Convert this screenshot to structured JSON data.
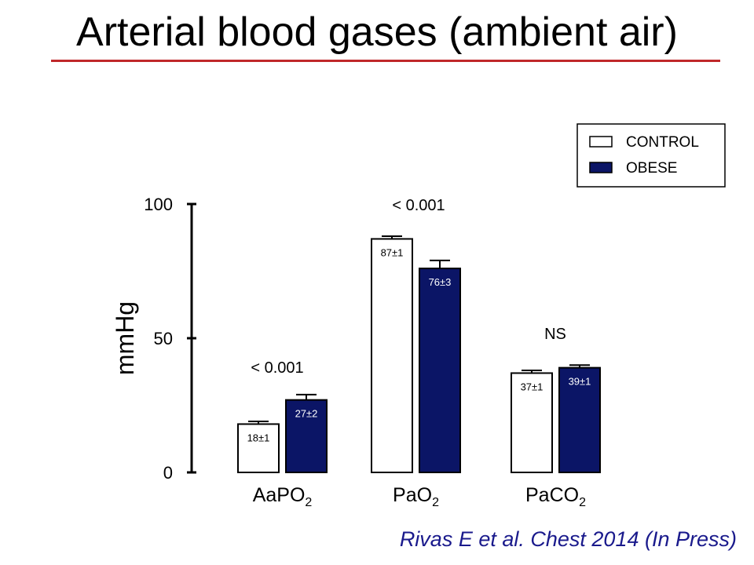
{
  "title": "Arterial blood gases (ambient air)",
  "citation": "Rivas E et al. Chest 2014 (In Press)",
  "colors": {
    "control": "#ffffff",
    "obese": "#0b1566",
    "title_rule": "#c0282a",
    "citation": "#1a1a8c"
  },
  "chart_data": {
    "type": "bar",
    "ylabel": "mmHg",
    "ylim": [
      0,
      100
    ],
    "yticks": [
      0,
      50,
      100
    ],
    "grid": false,
    "legend_position": "top-right",
    "categories": [
      {
        "base": "AaPO",
        "sub": "2"
      },
      {
        "base": "PaO",
        "sub": "2"
      },
      {
        "base": "PaCO",
        "sub": "2"
      }
    ],
    "series": [
      {
        "name": "CONTROL",
        "values": [
          18,
          87,
          37
        ],
        "errors": [
          1,
          1,
          1
        ],
        "labels": [
          "18±1",
          "87±1",
          "37±1"
        ]
      },
      {
        "name": "OBESE",
        "values": [
          27,
          76,
          39
        ],
        "errors": [
          2,
          3,
          1
        ],
        "labels": [
          "27±2",
          "76±3",
          "39±1"
        ]
      }
    ],
    "significance": [
      "< 0.001",
      "< 0.001",
      "NS"
    ]
  }
}
